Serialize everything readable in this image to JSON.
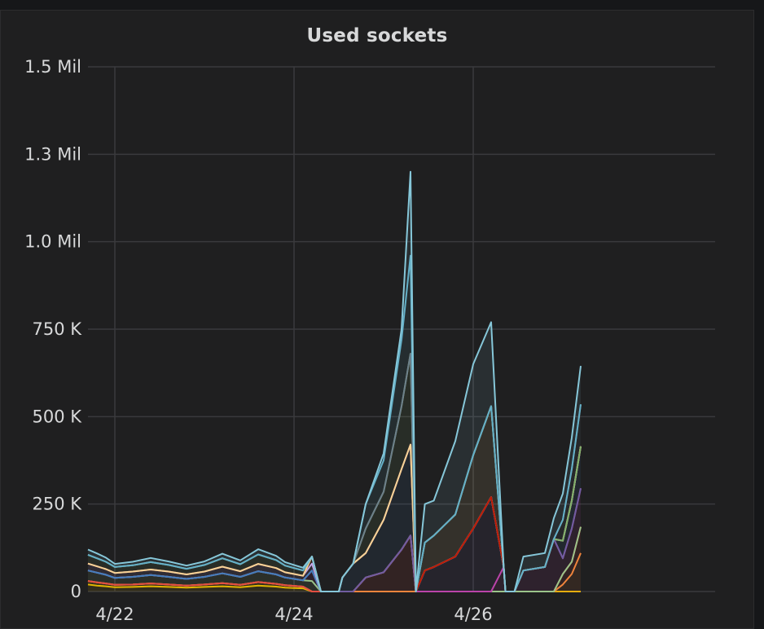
{
  "panel": {
    "title": "Used sockets"
  },
  "chart_data": {
    "type": "area",
    "title": "Used sockets",
    "stacked": true,
    "grid": true,
    "legend": "none",
    "xlabel": "",
    "ylabel": "",
    "x_range": [
      -1.15,
      2.35
    ],
    "ylim": [
      0,
      1500000
    ],
    "y_ticks": [
      {
        "value": 0,
        "label": "0"
      },
      {
        "value": 250000,
        "label": "250 K"
      },
      {
        "value": 500000,
        "label": "500 K"
      },
      {
        "value": 750000,
        "label": "750 K"
      },
      {
        "value": 1000000,
        "label": "1.0 Mil"
      },
      {
        "value": 1250000,
        "label": "1.3 Mil"
      },
      {
        "value": 1500000,
        "label": "1.5 Mil"
      }
    ],
    "x_ticks": [
      {
        "value": -1,
        "label": "4/22"
      },
      {
        "value": 0,
        "label": "4/24"
      },
      {
        "value": 1,
        "label": "4/26"
      }
    ],
    "x": [
      -1.15,
      -1.1,
      -1.05,
      -1.0,
      -0.9,
      -0.8,
      -0.7,
      -0.6,
      -0.5,
      -0.4,
      -0.3,
      -0.2,
      -0.1,
      -0.05,
      0.0,
      0.05,
      0.1,
      0.15,
      0.2,
      0.22,
      0.23,
      0.24,
      0.25,
      0.27,
      0.33,
      0.4,
      0.5,
      0.6,
      0.65,
      0.68,
      0.73,
      0.78,
      0.9,
      1.0,
      1.1,
      1.17,
      1.18,
      1.23,
      1.28,
      1.4,
      1.45,
      1.5,
      1.55,
      1.6
    ],
    "series": [
      {
        "color": "#e0b400",
        "values": [
          20000,
          17000,
          15000,
          12000,
          13000,
          15000,
          13000,
          11000,
          13000,
          15000,
          12000,
          17000,
          14000,
          11000,
          10000,
          9000,
          0,
          0,
          0,
          0,
          0,
          0,
          0,
          0,
          0,
          0,
          0,
          0,
          0,
          0,
          0,
          0,
          0,
          0,
          0,
          0,
          0,
          0,
          0,
          0,
          0,
          0,
          0,
          0
        ]
      },
      {
        "color": "#e5ac0e",
        "values": [
          10000,
          9000,
          8000,
          7000,
          7000,
          8000,
          7000,
          6000,
          7000,
          9000,
          7000,
          10000,
          8000,
          7000,
          6000,
          5000,
          0,
          0,
          0,
          0,
          0,
          0,
          0,
          0,
          0,
          0,
          0,
          0,
          0,
          0,
          0,
          0,
          0,
          0,
          0,
          0,
          0,
          0,
          0,
          0,
          0,
          0,
          0,
          0
        ]
      },
      {
        "color": "#ef843c",
        "values": [
          0,
          0,
          0,
          0,
          0,
          0,
          0,
          0,
          0,
          0,
          0,
          0,
          0,
          0,
          0,
          0,
          0,
          0,
          0,
          0,
          0,
          0,
          0,
          0,
          0,
          0,
          0,
          0,
          0,
          0,
          0,
          0,
          0,
          0,
          0,
          0,
          0,
          0,
          0,
          0,
          0,
          20000,
          50000,
          110000
        ]
      },
      {
        "color": "#e24d42",
        "values": [
          0,
          0,
          0,
          0,
          0,
          0,
          0,
          0,
          0,
          0,
          0,
          0,
          0,
          0,
          0,
          0,
          0,
          0,
          0,
          0,
          0,
          0,
          0,
          0,
          0,
          40000,
          55000,
          120000,
          160000,
          0,
          0,
          0,
          0,
          0,
          0,
          0,
          0,
          0,
          0,
          0,
          0,
          30000,
          35000,
          75000
        ]
      },
      {
        "color": "#9ac48a",
        "values": [
          30000,
          28000,
          25000,
          20000,
          22000,
          24000,
          22000,
          19000,
          22000,
          28000,
          23000,
          31000,
          27000,
          22000,
          20000,
          18000,
          30000,
          0,
          0,
          0,
          0,
          0,
          0,
          0,
          0,
          0,
          0,
          0,
          0,
          0,
          0,
          0,
          0,
          0,
          0,
          0,
          0,
          0,
          0,
          0,
          0,
          0,
          0,
          0
        ]
      },
      {
        "color": "#ba43a9",
        "values": [
          0,
          0,
          0,
          0,
          0,
          0,
          0,
          0,
          0,
          0,
          0,
          0,
          0,
          0,
          0,
          0,
          30000,
          0,
          0,
          0,
          0,
          0,
          0,
          0,
          0,
          0,
          0,
          0,
          0,
          0,
          0,
          0,
          0,
          0,
          0,
          70000,
          0,
          0,
          60000,
          70000,
          150000,
          45000,
          95000,
          110000
        ]
      },
      {
        "color": "#705da0",
        "values": [
          0,
          0,
          0,
          0,
          0,
          0,
          0,
          0,
          0,
          0,
          0,
          0,
          0,
          0,
          0,
          0,
          0,
          0,
          0,
          0,
          0,
          0,
          0,
          0,
          0,
          0,
          0,
          0,
          0,
          0,
          60000,
          70000,
          100000,
          180000,
          270000,
          0,
          0,
          0,
          0,
          0,
          0,
          0,
          0,
          0
        ]
      },
      {
        "color": "#447ebc",
        "values": [
          0,
          0,
          0,
          0,
          0,
          0,
          0,
          0,
          0,
          0,
          0,
          0,
          0,
          0,
          0,
          0,
          0,
          0,
          0,
          0,
          0,
          0,
          0,
          40000,
          80000,
          70000,
          150000,
          230000,
          260000,
          0,
          0,
          0,
          0,
          0,
          0,
          0,
          0,
          0,
          0,
          0,
          0,
          50000,
          80000,
          120000
        ]
      },
      {
        "color": "#c4a6e6",
        "values": [
          20000,
          18000,
          16000,
          14000,
          15000,
          16000,
          15000,
          13000,
          15000,
          19000,
          16000,
          21000,
          18000,
          15000,
          14000,
          13000,
          20000,
          0,
          0,
          0,
          0,
          0,
          0,
          0,
          0,
          0,
          0,
          0,
          0,
          0,
          0,
          0,
          0,
          0,
          0,
          0,
          0,
          0,
          0,
          0,
          0,
          0,
          0,
          0
        ]
      },
      {
        "color": "#bf1b00",
        "values": [
          0,
          0,
          0,
          0,
          0,
          0,
          0,
          0,
          0,
          0,
          0,
          0,
          0,
          0,
          0,
          0,
          20000,
          0,
          0,
          0,
          0,
          0,
          0,
          0,
          0,
          0,
          0,
          0,
          0,
          0,
          0,
          0,
          0,
          0,
          0,
          0,
          0,
          0,
          0,
          0,
          0,
          0,
          0,
          0
        ]
      },
      {
        "color": "#f4d598",
        "values": [
          0,
          0,
          0,
          0,
          0,
          0,
          0,
          0,
          0,
          0,
          0,
          0,
          0,
          0,
          0,
          0,
          0,
          0,
          0,
          0,
          0,
          0,
          0,
          0,
          0,
          0,
          0,
          0,
          0,
          0,
          80000,
          90000,
          120000,
          210000,
          260000,
          0,
          0,
          0,
          0,
          0,
          0,
          0,
          0,
          0
        ]
      },
      {
        "color": "#7eb26d",
        "values": [
          25000,
          23000,
          21000,
          17000,
          18000,
          21000,
          19000,
          16000,
          19000,
          24000,
          20000,
          27000,
          23000,
          19000,
          17000,
          15000,
          0,
          0,
          0,
          0,
          0,
          0,
          0,
          0,
          0,
          70000,
          80000,
          180000,
          260000,
          0,
          0,
          0,
          0,
          0,
          0,
          0,
          0,
          0,
          0,
          0,
          0,
          0,
          0,
          0
        ]
      },
      {
        "color": "#6d7f8b",
        "values": [
          0,
          0,
          0,
          0,
          0,
          0,
          0,
          0,
          0,
          0,
          0,
          0,
          0,
          0,
          0,
          0,
          0,
          0,
          0,
          0,
          0,
          0,
          0,
          0,
          0,
          0,
          0,
          0,
          0,
          0,
          0,
          0,
          0,
          0,
          0,
          0,
          0,
          0,
          0,
          0,
          0,
          60000,
          90000,
          120000
        ]
      },
      {
        "color": "#64b0c8",
        "values": [
          0,
          0,
          0,
          0,
          0,
          0,
          0,
          0,
          0,
          0,
          0,
          0,
          0,
          0,
          0,
          0,
          0,
          0,
          0,
          0,
          0,
          0,
          0,
          0,
          0,
          70000,
          90000,
          190000,
          280000,
          0,
          0,
          0,
          0,
          0,
          0,
          0,
          0,
          0,
          0,
          0,
          0,
          0,
          0,
          0
        ]
      },
      {
        "color": "#86c7d9",
        "values": [
          15000,
          14000,
          12000,
          9000,
          10000,
          12000,
          10000,
          9000,
          10000,
          13000,
          11000,
          15000,
          12000,
          10000,
          9000,
          8000,
          0,
          0,
          0,
          0,
          0,
          0,
          0,
          0,
          0,
          0,
          20000,
          30000,
          240000,
          0,
          110000,
          100000,
          210000,
          260000,
          240000,
          0,
          0,
          0,
          40000,
          40000,
          60000,
          75000,
          90000,
          110000
        ]
      }
    ]
  }
}
